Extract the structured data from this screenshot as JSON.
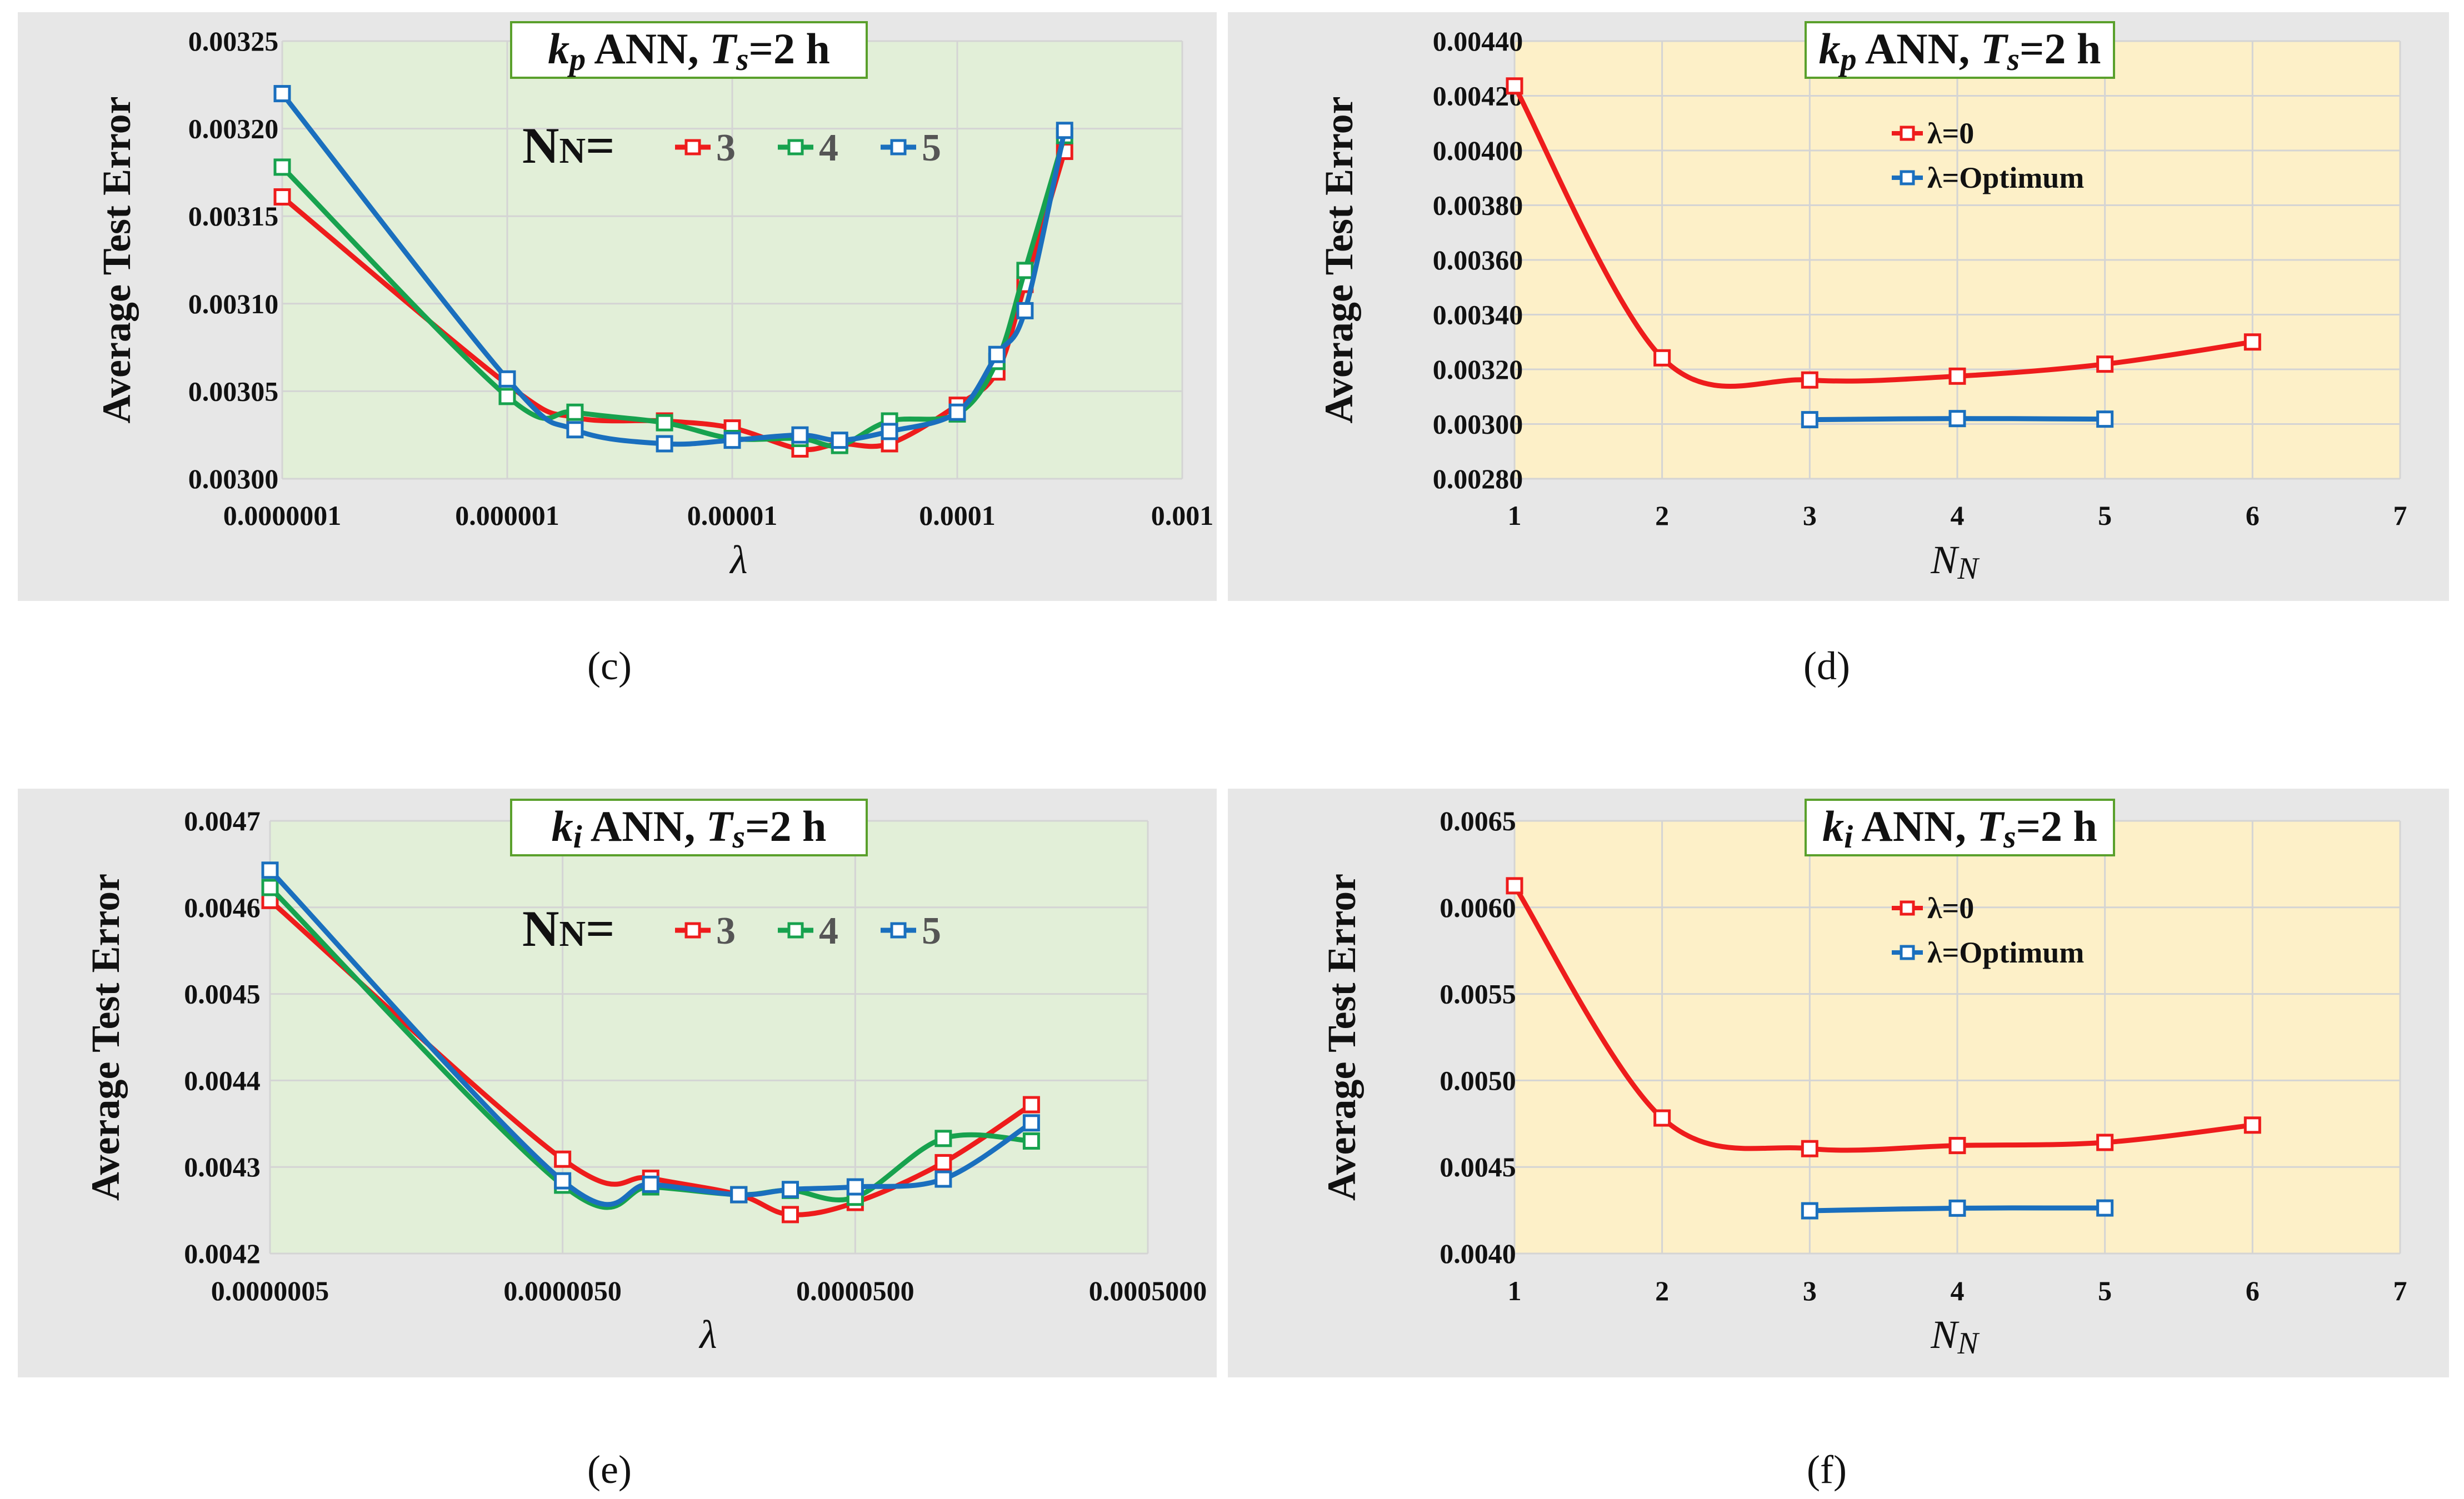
{
  "captions": [
    "(c)",
    "(d)",
    "(e)",
    "(f)"
  ],
  "colors": {
    "red": "#ee1c1c",
    "green": "#17a24e",
    "blue": "#1a6fbe",
    "green_bg": "#e2efd8",
    "yellow_bg": "#fdf0c8",
    "panel_bg": "#e7e7e7",
    "title_border": "#5aa02c"
  },
  "chart_data": [
    {
      "id": "c",
      "type": "line",
      "xscale": "log",
      "title": {
        "var": "k",
        "sub": "p",
        "mid": " ANN, ",
        "tvar": "T",
        "tsub": "s",
        "tail": "=2 h"
      },
      "xlabel": "λ",
      "ylabel": "Average Test Error",
      "xlim": [
        1e-07,
        0.001
      ],
      "ylim": [
        0.003,
        0.00325
      ],
      "xticks": [
        1e-07,
        1e-06,
        1e-05,
        0.0001,
        0.001
      ],
      "xtick_labels": [
        "0.0000001",
        "0.000001",
        "0.00001",
        "0.0001",
        "0.001"
      ],
      "yticks": [
        0.003,
        0.00305,
        0.0031,
        0.00315,
        0.0032,
        0.00325
      ],
      "ytick_labels": [
        "0.00300",
        "0.00305",
        "0.00310",
        "0.00315",
        "0.00320",
        "0.00325"
      ],
      "legend": {
        "prefix": "N",
        "prefix_sub": "N",
        "eq": "="
      },
      "series": [
        {
          "name": "3",
          "color": "red",
          "x": [
            1e-07,
            1e-06,
            2e-06,
            5e-06,
            1e-05,
            2e-05,
            3e-05,
            5e-05,
            0.0001,
            0.00015,
            0.0002,
            0.0003
          ],
          "y": [
            0.003161,
            0.003054,
            0.003035,
            0.003033,
            0.003029,
            0.003017,
            0.00302,
            0.00302,
            0.003042,
            0.003061,
            0.003111,
            0.003187
          ]
        },
        {
          "name": "4",
          "color": "green",
          "x": [
            1e-07,
            1e-06,
            2e-06,
            5e-06,
            1e-05,
            2e-05,
            3e-05,
            5e-05,
            0.0001,
            0.00015,
            0.0002,
            0.0003
          ],
          "y": [
            0.003178,
            0.003047,
            0.003038,
            0.003032,
            0.003023,
            0.003023,
            0.003019,
            0.003033,
            0.003037,
            0.003067,
            0.003119,
            0.003196
          ]
        },
        {
          "name": "5",
          "color": "blue",
          "x": [
            1e-07,
            1e-06,
            2e-06,
            5e-06,
            1e-05,
            2e-05,
            3e-05,
            5e-05,
            0.0001,
            0.00015,
            0.0002,
            0.0003
          ],
          "y": [
            0.00322,
            0.003057,
            0.003028,
            0.00302,
            0.003022,
            0.003025,
            0.003022,
            0.003027,
            0.003038,
            0.003071,
            0.003096,
            0.003199
          ]
        }
      ]
    },
    {
      "id": "d",
      "type": "line",
      "xscale": "linear",
      "title": {
        "var": "k",
        "sub": "p",
        "mid": " ANN, ",
        "tvar": "T",
        "tsub": "s",
        "tail": "=2 h"
      },
      "xlabel": "N",
      "xlabel_sub": "N",
      "ylabel": "Average Test Error",
      "xlim": [
        1,
        7
      ],
      "ylim": [
        0.0028,
        0.0044
      ],
      "xticks": [
        1,
        2,
        3,
        4,
        5,
        6,
        7
      ],
      "xtick_labels": [
        "1",
        "2",
        "3",
        "4",
        "5",
        "6",
        "7"
      ],
      "yticks": [
        0.0028,
        0.003,
        0.0032,
        0.0034,
        0.0036,
        0.0038,
        0.004,
        0.0042,
        0.0044
      ],
      "ytick_labels": [
        "0.00280",
        "0.00300",
        "0.00320",
        "0.00340",
        "0.00360",
        "0.00380",
        "0.00400",
        "0.00420",
        "0.00440"
      ],
      "series": [
        {
          "name": "λ=0",
          "color": "red",
          "x": [
            1,
            2,
            3,
            4,
            5,
            6
          ],
          "y": [
            0.004236,
            0.003242,
            0.003161,
            0.003175,
            0.003219,
            0.0033
          ]
        },
        {
          "name": "λ=Optimum",
          "color": "blue",
          "x": [
            3,
            4,
            5
          ],
          "y": [
            0.003016,
            0.00302,
            0.003018
          ]
        }
      ]
    },
    {
      "id": "e",
      "type": "line",
      "xscale": "log",
      "title": {
        "var": "k",
        "sub": "i",
        "mid": " ANN, ",
        "tvar": "T",
        "tsub": "s",
        "tail": "=2 h"
      },
      "xlabel": "λ",
      "ylabel": "Average Test Error",
      "xlim": [
        5e-07,
        0.0005
      ],
      "ylim": [
        0.0042,
        0.0047
      ],
      "xticks": [
        5e-07,
        5e-06,
        5e-05,
        0.0005
      ],
      "xtick_labels": [
        "0.0000005",
        "0.0000050",
        "0.0000500",
        "0.0005000"
      ],
      "yticks": [
        0.0042,
        0.0043,
        0.0044,
        0.0045,
        0.0046,
        0.0047
      ],
      "ytick_labels": [
        "0.0042",
        "0.0043",
        "0.0044",
        "0.0045",
        "0.0046",
        "0.0047"
      ],
      "legend": {
        "prefix": "N",
        "prefix_sub": "N",
        "eq": "="
      },
      "series": [
        {
          "name": "3",
          "color": "red",
          "x": [
            5e-07,
            5e-06,
            1e-05,
            2e-05,
            3e-05,
            5e-05,
            0.0001,
            0.0002
          ],
          "y": [
            0.004608,
            0.004309,
            0.004287,
            0.004268,
            0.004245,
            0.004259,
            0.004305,
            0.004372
          ]
        },
        {
          "name": "4",
          "color": "green",
          "x": [
            5e-07,
            5e-06,
            1e-05,
            2e-05,
            3e-05,
            5e-05,
            0.0001,
            0.0002
          ],
          "y": [
            0.004623,
            0.004279,
            0.004277,
            0.004268,
            0.004273,
            0.004265,
            0.004333,
            0.00433
          ]
        },
        {
          "name": "5",
          "color": "blue",
          "x": [
            5e-07,
            5e-06,
            1e-05,
            2e-05,
            3e-05,
            5e-05,
            0.0001,
            0.0002
          ],
          "y": [
            0.004643,
            0.004284,
            0.00428,
            0.004268,
            0.004274,
            0.004277,
            0.004286,
            0.004351
          ]
        }
      ]
    },
    {
      "id": "f",
      "type": "line",
      "xscale": "linear",
      "title": {
        "var": "k",
        "sub": "i",
        "mid": " ANN, ",
        "tvar": "T",
        "tsub": "s",
        "tail": "=2 h"
      },
      "xlabel": "N",
      "xlabel_sub": "N",
      "ylabel": "Average Test Error",
      "xlim": [
        1,
        7
      ],
      "ylim": [
        0.004,
        0.0065
      ],
      "xticks": [
        1,
        2,
        3,
        4,
        5,
        6,
        7
      ],
      "xtick_labels": [
        "1",
        "2",
        "3",
        "4",
        "5",
        "6",
        "7"
      ],
      "yticks": [
        0.004,
        0.0045,
        0.005,
        0.0055,
        0.006,
        0.0065
      ],
      "ytick_labels": [
        "0.0040",
        "0.0045",
        "0.0050",
        "0.0055",
        "0.0060",
        "0.0065"
      ],
      "series": [
        {
          "name": "λ=0",
          "color": "red",
          "x": [
            1,
            2,
            3,
            4,
            5,
            6
          ],
          "y": [
            0.006125,
            0.004783,
            0.004606,
            0.004624,
            0.004642,
            0.004742
          ]
        },
        {
          "name": "λ=Optimum",
          "color": "blue",
          "x": [
            3,
            4,
            5
          ],
          "y": [
            0.004247,
            0.004262,
            0.004263
          ]
        }
      ]
    }
  ]
}
